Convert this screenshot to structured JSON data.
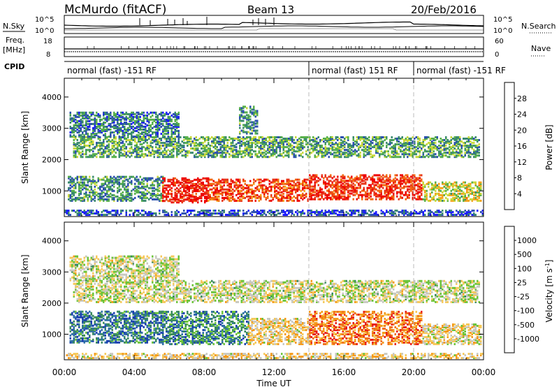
{
  "header": {
    "station": "McMurdo (fitACF)",
    "beam": "Beam 13",
    "date": "20/Feb/2016"
  },
  "noise_panel": {
    "left_label": "N.Sky",
    "right_label": "N.Search",
    "ticks_left": [
      "10^5",
      "10^0"
    ],
    "ticks_right": [
      "10^5",
      "10^0"
    ]
  },
  "freq_panel": {
    "left_label_1": "Freq.",
    "left_label_2": "[MHz]",
    "right_label": "Nave",
    "ticks_left": [
      "18",
      "8"
    ],
    "ticks_right": [
      "60",
      "0"
    ]
  },
  "cpid": {
    "label": "CPID",
    "segments": [
      {
        "text": "normal (fast) -151 RF",
        "start_hour": 0
      },
      {
        "text": "normal (fast) 151 RF",
        "start_hour": 14
      },
      {
        "text": "normal (fast) -151 RF",
        "start_hour": 20
      }
    ]
  },
  "chart_data": [
    {
      "type": "heatmap",
      "title": "",
      "xlabel": "Time UT",
      "ylabel": "Slant Range [km]",
      "x_ticks": [
        "00:00",
        "04:00",
        "08:00",
        "12:00",
        "16:00",
        "20:00",
        "00:00"
      ],
      "xlim_hours": [
        0,
        24
      ],
      "y_ticks": [
        1000,
        2000,
        3000,
        4000
      ],
      "ylim": [
        180,
        4600
      ],
      "colorbar": {
        "label": "Power [dB]",
        "ticks": [
          "4",
          "8",
          "12",
          "16",
          "20",
          "24",
          "28"
        ],
        "colors": [
          "#1a1aff",
          "#2c4fb0",
          "#3a8a6e",
          "#58b04a",
          "#c8d83a",
          "#f5a31a",
          "#f26a10",
          "#e8361a",
          "#ee0000"
        ]
      },
      "echo_regions": [
        {
          "t0": 0.5,
          "t1": 23.8,
          "r0": 2050,
          "r1": 2700,
          "level": 0.35
        },
        {
          "t0": 0.2,
          "t1": 5.6,
          "r0": 650,
          "r1": 1450,
          "level": 0.3
        },
        {
          "t0": 5.6,
          "t1": 8.2,
          "r0": 600,
          "r1": 1400,
          "level": 0.9
        },
        {
          "t0": 8.2,
          "t1": 14.0,
          "r0": 650,
          "r1": 1350,
          "level": 0.8
        },
        {
          "t0": 14.0,
          "t1": 20.5,
          "r0": 700,
          "r1": 1500,
          "level": 0.85
        },
        {
          "t0": 20.5,
          "t1": 23.9,
          "r0": 650,
          "r1": 1250,
          "level": 0.5
        },
        {
          "t0": 0.3,
          "t1": 6.5,
          "r0": 2700,
          "r1": 3500,
          "level": 0.25
        },
        {
          "t0": 10.0,
          "t1": 11.0,
          "r0": 2800,
          "r1": 3700,
          "level": 0.3
        },
        {
          "t0": 0.0,
          "t1": 24.0,
          "r0": 200,
          "r1": 350,
          "level": 0.15
        }
      ]
    },
    {
      "type": "heatmap",
      "title": "",
      "xlabel": "Time UT",
      "ylabel": "Slant Range [km]",
      "x_ticks": [
        "00:00",
        "04:00",
        "08:00",
        "12:00",
        "16:00",
        "20:00",
        "00:00"
      ],
      "xlim_hours": [
        0,
        24
      ],
      "y_ticks": [
        1000,
        2000,
        3000,
        4000
      ],
      "ylim": [
        180,
        4600
      ],
      "colorbar": {
        "label": "Velocity [m s",
        "label_sup": "-1",
        "label_end": "]",
        "ticks": [
          "1000",
          "500",
          "100",
          "25",
          "-25",
          "-100",
          "-500",
          "-1000"
        ],
        "colors": [
          "#1a3fb0",
          "#2f6fa8",
          "#3a8a5e",
          "#6cc43a",
          "#c8c8c0",
          "#f5c85a",
          "#f59a1a",
          "#f0701a",
          "#e8201a"
        ]
      },
      "echo_regions": [
        {
          "t0": 0.5,
          "t1": 23.8,
          "r0": 2000,
          "r1": 2700,
          "level": 0.5
        },
        {
          "t0": 0.3,
          "t1": 5.6,
          "r0": 700,
          "r1": 1700,
          "level": 0.2
        },
        {
          "t0": 5.6,
          "t1": 10.5,
          "r0": 650,
          "r1": 1700,
          "level": 0.25
        },
        {
          "t0": 10.5,
          "t1": 14.0,
          "r0": 650,
          "r1": 1500,
          "level": 0.6
        },
        {
          "t0": 14.0,
          "t1": 20.5,
          "r0": 650,
          "r1": 1700,
          "level": 0.8
        },
        {
          "t0": 20.5,
          "t1": 23.9,
          "r0": 650,
          "r1": 1300,
          "level": 0.55
        },
        {
          "t0": 0.3,
          "t1": 6.5,
          "r0": 2700,
          "r1": 3500,
          "level": 0.5
        },
        {
          "t0": 0.0,
          "t1": 24.0,
          "r0": 200,
          "r1": 350,
          "level": 0.6
        }
      ]
    }
  ]
}
